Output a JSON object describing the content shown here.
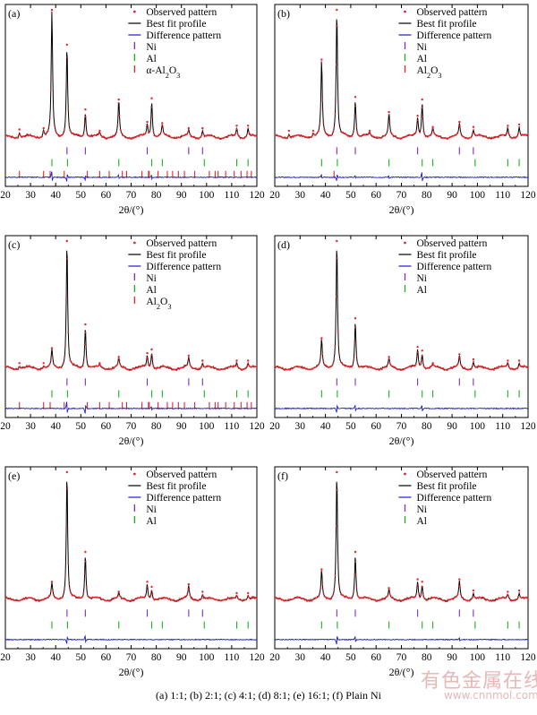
{
  "caption": "(a) 1:1; (b) 2:1; (c) 4:1; (d) 8:1; (e) 16:1; (f) Plain Ni",
  "watermark": {
    "text": "有色金属在线",
    "url": "www.cnnmol.com"
  },
  "colors": {
    "observed": "#e8262a",
    "fit": "#000000",
    "difference": "#1a1ad8",
    "ni_tick": "#7b2fbe",
    "al_tick": "#19b319",
    "al2o3_tick": "#e8262a"
  },
  "chart_data": [
    {
      "type": "line",
      "panel_label": "(a)",
      "xlabel": "2θ/(°)",
      "xlim": [
        20,
        120
      ],
      "x_ticks": [
        20,
        30,
        40,
        50,
        60,
        70,
        80,
        90,
        100,
        110,
        120
      ],
      "legend": [
        "Observed pattern",
        "Best fit profile",
        "Difference pattern",
        "Ni",
        "Al",
        "α-Al2O3"
      ],
      "peaks": [
        {
          "x": 25.6,
          "y": 0.04
        },
        {
          "x": 35.2,
          "y": 0.05
        },
        {
          "x": 38.5,
          "y": 1.0
        },
        {
          "x": 44.5,
          "y": 0.72
        },
        {
          "x": 51.8,
          "y": 0.2
        },
        {
          "x": 57.5,
          "y": 0.03
        },
        {
          "x": 65.1,
          "y": 0.28
        },
        {
          "x": 76.4,
          "y": 0.1
        },
        {
          "x": 78.2,
          "y": 0.29
        },
        {
          "x": 82.4,
          "y": 0.09
        },
        {
          "x": 92.9,
          "y": 0.05
        },
        {
          "x": 98.4,
          "y": 0.05
        },
        {
          "x": 112.0,
          "y": 0.07
        },
        {
          "x": 116.5,
          "y": 0.07
        }
      ],
      "reflections": {
        "Ni": [
          44.5,
          51.8,
          76.4,
          92.9,
          98.4
        ],
        "Al": [
          38.5,
          44.7,
          65.1,
          78.2,
          82.4,
          99.1,
          112.0,
          116.5
        ],
        "Al2O3": [
          25.6,
          35.2,
          37.8,
          43.4,
          52.6,
          57.5,
          61.3,
          66.5,
          68.2,
          74.3,
          76.9,
          77.2,
          80.7,
          84.4,
          86.5,
          88.8,
          91.2,
          95.3,
          101.1,
          103.4,
          104.6,
          107.6,
          111.0,
          113.7,
          116.1,
          117.8
        ]
      },
      "difference": [
        {
          "x": 38.5,
          "y": 0.08
        },
        {
          "x": 44.5,
          "y": -0.06
        },
        {
          "x": 51.8,
          "y": -0.04
        },
        {
          "x": 65.1,
          "y": 0.03
        },
        {
          "x": 78.2,
          "y": 0.03
        }
      ]
    },
    {
      "type": "line",
      "panel_label": "(b)",
      "xlabel": "2θ/(°)",
      "xlim": [
        20,
        120
      ],
      "x_ticks": [
        20,
        30,
        40,
        50,
        60,
        70,
        80,
        90,
        100,
        110,
        120
      ],
      "legend": [
        "Observed pattern",
        "Best fit profile",
        "Difference pattern",
        "Ni",
        "Al",
        "Al2O3"
      ],
      "peaks": [
        {
          "x": 25.6,
          "y": 0.03
        },
        {
          "x": 35.2,
          "y": 0.03
        },
        {
          "x": 38.5,
          "y": 0.6
        },
        {
          "x": 44.5,
          "y": 1.0
        },
        {
          "x": 51.8,
          "y": 0.3
        },
        {
          "x": 57.5,
          "y": 0.03
        },
        {
          "x": 65.1,
          "y": 0.18
        },
        {
          "x": 76.4,
          "y": 0.15
        },
        {
          "x": 78.2,
          "y": 0.28
        },
        {
          "x": 82.4,
          "y": 0.06
        },
        {
          "x": 92.9,
          "y": 0.1
        },
        {
          "x": 98.4,
          "y": 0.06
        },
        {
          "x": 112.0,
          "y": 0.07
        },
        {
          "x": 116.5,
          "y": 0.08
        }
      ],
      "reflections": {
        "Ni": [
          44.5,
          51.8,
          76.4,
          92.9,
          98.4
        ],
        "Al": [
          38.5,
          44.7,
          65.1,
          78.2,
          82.4,
          99.1,
          112.0,
          116.5
        ],
        "Al2O3": [
          43.4
        ]
      },
      "difference": [
        {
          "x": 38.5,
          "y": 0.03
        },
        {
          "x": 44.5,
          "y": -0.05
        },
        {
          "x": 51.8,
          "y": 0.02
        },
        {
          "x": 78.2,
          "y": 0.08
        },
        {
          "x": 65.1,
          "y": 0.02
        }
      ]
    },
    {
      "type": "line",
      "panel_label": "(c)",
      "xlabel": "2θ/(°)",
      "xlim": [
        20,
        120
      ],
      "x_ticks": [
        20,
        30,
        40,
        50,
        60,
        70,
        80,
        90,
        100,
        110,
        120
      ],
      "legend": [
        "Observed pattern",
        "Best fit profile",
        "Difference pattern",
        "Ni",
        "Al",
        "Al2O3"
      ],
      "peaks": [
        {
          "x": 25.6,
          "y": 0.02
        },
        {
          "x": 35.2,
          "y": 0.02
        },
        {
          "x": 38.5,
          "y": 0.14
        },
        {
          "x": 44.5,
          "y": 1.0
        },
        {
          "x": 51.8,
          "y": 0.33
        },
        {
          "x": 57.5,
          "y": 0.02
        },
        {
          "x": 65.1,
          "y": 0.07
        },
        {
          "x": 76.4,
          "y": 0.1
        },
        {
          "x": 78.2,
          "y": 0.13
        },
        {
          "x": 92.9,
          "y": 0.08
        },
        {
          "x": 98.4,
          "y": 0.04
        },
        {
          "x": 112.0,
          "y": 0.04
        },
        {
          "x": 116.5,
          "y": 0.04
        }
      ],
      "reflections": {
        "Ni": [
          44.5,
          51.8,
          76.4,
          92.9,
          98.4
        ],
        "Al": [
          38.5,
          44.7,
          65.1,
          78.2,
          82.4,
          99.1,
          112.0,
          116.5
        ],
        "Al2O3": [
          25.6,
          35.2,
          37.8,
          43.4,
          52.6,
          57.5,
          61.3,
          66.5,
          68.2,
          74.3,
          76.9,
          77.2,
          80.7,
          84.4,
          86.5,
          88.8,
          91.2,
          95.3,
          101.1,
          103.4,
          104.6,
          107.6,
          111.0,
          113.7,
          116.1,
          117.8
        ]
      },
      "difference": [
        {
          "x": 44.5,
          "y": 0.09
        },
        {
          "x": 51.8,
          "y": -0.07
        },
        {
          "x": 78.2,
          "y": 0.03
        }
      ]
    },
    {
      "type": "line",
      "panel_label": "(d)",
      "xlabel": "2θ/(°)",
      "xlim": [
        20,
        120
      ],
      "x_ticks": [
        20,
        30,
        40,
        50,
        60,
        70,
        80,
        90,
        100,
        110,
        120
      ],
      "legend": [
        "Observed pattern",
        "Best fit profile",
        "Difference pattern",
        "Ni",
        "Al"
      ],
      "peaks": [
        {
          "x": 38.5,
          "y": 0.22
        },
        {
          "x": 44.5,
          "y": 1.0
        },
        {
          "x": 51.8,
          "y": 0.38
        },
        {
          "x": 65.1,
          "y": 0.07
        },
        {
          "x": 76.4,
          "y": 0.15
        },
        {
          "x": 78.2,
          "y": 0.12
        },
        {
          "x": 82.4,
          "y": 0.02
        },
        {
          "x": 92.9,
          "y": 0.09
        },
        {
          "x": 98.4,
          "y": 0.05
        },
        {
          "x": 112.0,
          "y": 0.04
        },
        {
          "x": 116.5,
          "y": 0.04
        }
      ],
      "reflections": {
        "Ni": [
          44.5,
          51.8,
          76.4,
          92.9,
          98.4
        ],
        "Al": [
          38.5,
          44.7,
          65.1,
          78.2,
          82.4,
          99.1,
          112.0,
          116.5
        ]
      },
      "difference": [
        {
          "x": 44.5,
          "y": -0.06
        },
        {
          "x": 51.8,
          "y": 0.04
        },
        {
          "x": 78.2,
          "y": 0.05
        }
      ]
    },
    {
      "type": "line",
      "panel_label": "(e)",
      "xlabel": "2θ/(°)",
      "xlim": [
        20,
        120
      ],
      "x_ticks": [
        20,
        30,
        40,
        50,
        60,
        70,
        80,
        90,
        100,
        110,
        120
      ],
      "legend": [
        "Observed pattern",
        "Best fit profile",
        "Difference pattern",
        "Ni",
        "Al"
      ],
      "peaks": [
        {
          "x": 38.5,
          "y": 0.12
        },
        {
          "x": 44.5,
          "y": 1.0
        },
        {
          "x": 51.8,
          "y": 0.36
        },
        {
          "x": 65.1,
          "y": 0.04
        },
        {
          "x": 76.4,
          "y": 0.12
        },
        {
          "x": 78.2,
          "y": 0.08
        },
        {
          "x": 92.9,
          "y": 0.1
        },
        {
          "x": 98.4,
          "y": 0.04
        },
        {
          "x": 112.0,
          "y": 0.03
        },
        {
          "x": 116.5,
          "y": 0.03
        }
      ],
      "reflections": {
        "Ni": [
          44.5,
          51.8,
          76.4,
          92.9,
          98.4
        ],
        "Al": [
          38.5,
          44.7,
          65.1,
          78.2,
          82.4,
          99.1,
          112.0,
          116.5
        ]
      },
      "difference": [
        {
          "x": 44.5,
          "y": -0.06
        },
        {
          "x": 51.8,
          "y": 0.05
        }
      ]
    },
    {
      "type": "line",
      "panel_label": "(f)",
      "xlabel": "2θ/(°)",
      "xlim": [
        20,
        120
      ],
      "x_ticks": [
        20,
        30,
        40,
        50,
        60,
        70,
        80,
        90,
        100,
        110,
        120
      ],
      "legend": [
        "Observed pattern",
        "Best fit profile",
        "Difference pattern",
        "Ni",
        "Al"
      ],
      "peaks": [
        {
          "x": 38.5,
          "y": 0.22
        },
        {
          "x": 44.5,
          "y": 1.0
        },
        {
          "x": 51.8,
          "y": 0.36
        },
        {
          "x": 65.1,
          "y": 0.07
        },
        {
          "x": 76.4,
          "y": 0.14
        },
        {
          "x": 78.2,
          "y": 0.12
        },
        {
          "x": 92.9,
          "y": 0.14
        },
        {
          "x": 98.4,
          "y": 0.05
        },
        {
          "x": 112.0,
          "y": 0.04
        },
        {
          "x": 116.5,
          "y": 0.05
        }
      ],
      "reflections": {
        "Ni": [
          44.5,
          51.8,
          76.4,
          92.9,
          98.4
        ],
        "Al": [
          38.5,
          44.7,
          65.1,
          78.2,
          82.4,
          99.1,
          112.0,
          116.5
        ]
      },
      "difference": [
        {
          "x": 44.5,
          "y": -0.07
        },
        {
          "x": 51.8,
          "y": 0.04
        },
        {
          "x": 92.9,
          "y": 0.02
        }
      ]
    }
  ]
}
